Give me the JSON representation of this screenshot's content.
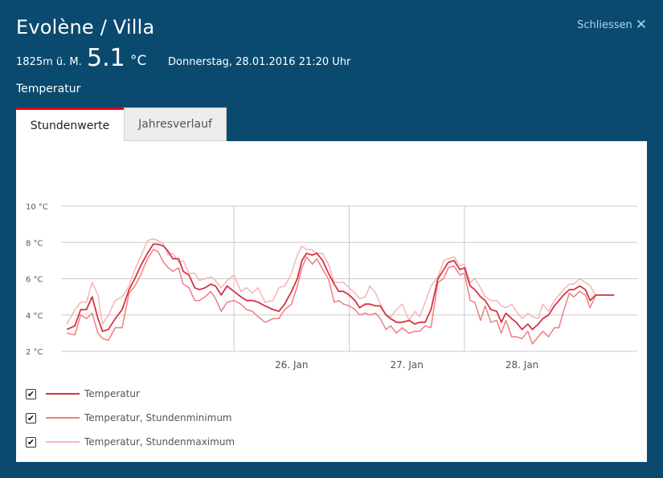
{
  "header": {
    "title": "Evolène / Villa",
    "close_label": "Schliessen",
    "altitude": "1825m ü. M.",
    "temperature": "5.1",
    "unit": "°C",
    "datetime": "Donnerstag, 28.01.2016 21:20 Uhr",
    "parameter": "Temperatur"
  },
  "tabs": [
    {
      "label": "Stundenwerte",
      "active": true
    },
    {
      "label": "Jahresverlauf",
      "active": false
    }
  ],
  "colors": {
    "background": "#0b4a6f",
    "accent": "#e2001a",
    "temp": "#d8323f",
    "tmin": "#ec7f84",
    "tmax": "#f6b4b6"
  },
  "icons": {
    "close": "close-icon",
    "checkbox": "checkmark-icon"
  },
  "legend": [
    {
      "label": "Temperatur",
      "checked": true
    },
    {
      "label": "Temperatur, Stundenminimum",
      "checked": true
    },
    {
      "label": "Temperatur, Stundenmaximum",
      "checked": true
    }
  ],
  "chart_data": {
    "type": "line",
    "grid": true,
    "legend_position": "bottom-left",
    "ylim": [
      2,
      10
    ],
    "xlim": [
      -2.0,
      3.0
    ],
    "y_ticks": [
      {
        "value": 2,
        "label": "2 °C"
      },
      {
        "value": 4,
        "label": "4 °C"
      },
      {
        "value": 6,
        "label": "6 °C"
      },
      {
        "value": 8,
        "label": "8 °C"
      },
      {
        "value": 10,
        "label": "10 °C"
      }
    ],
    "x_ticks": [
      {
        "value": 0,
        "label": "26. Jan"
      },
      {
        "value": 1,
        "label": "27. Jan"
      },
      {
        "value": 2,
        "label": "28. Jan"
      }
    ],
    "x_gridlines": [
      -0.5,
      0.5,
      1.5
    ],
    "series": [
      {
        "name": "Temperatur",
        "points": [
          [
            -1.95,
            3.2
          ],
          [
            -1.88,
            3.4
          ],
          [
            -1.83,
            4.3
          ],
          [
            -1.78,
            4.3
          ],
          [
            -1.73,
            5.0
          ],
          [
            -1.68,
            3.8
          ],
          [
            -1.64,
            3.1
          ],
          [
            -1.59,
            3.2
          ],
          [
            -1.53,
            3.8
          ],
          [
            -1.47,
            4.3
          ],
          [
            -1.41,
            5.4
          ],
          [
            -1.36,
            6.0
          ],
          [
            -1.31,
            6.7
          ],
          [
            -1.25,
            7.4
          ],
          [
            -1.2,
            7.9
          ],
          [
            -1.16,
            7.9
          ],
          [
            -1.11,
            7.8
          ],
          [
            -1.07,
            7.5
          ],
          [
            -1.03,
            7.1
          ],
          [
            -0.98,
            7.1
          ],
          [
            -0.94,
            6.4
          ],
          [
            -0.89,
            6.2
          ],
          [
            -0.84,
            5.5
          ],
          [
            -0.8,
            5.4
          ],
          [
            -0.75,
            5.5
          ],
          [
            -0.7,
            5.7
          ],
          [
            -0.66,
            5.6
          ],
          [
            -0.61,
            5.1
          ],
          [
            -0.56,
            5.6
          ],
          [
            -0.5,
            5.3
          ],
          [
            -0.44,
            5.0
          ],
          [
            -0.39,
            4.8
          ],
          [
            -0.34,
            4.8
          ],
          [
            -0.29,
            4.7
          ],
          [
            -0.23,
            4.5
          ],
          [
            -0.16,
            4.3
          ],
          [
            -0.11,
            4.2
          ],
          [
            -0.06,
            4.6
          ],
          [
            0.0,
            5.3
          ],
          [
            0.05,
            6.0
          ],
          [
            0.09,
            7.0
          ],
          [
            0.13,
            7.4
          ],
          [
            0.18,
            7.3
          ],
          [
            0.22,
            7.4
          ],
          [
            0.27,
            7.0
          ],
          [
            0.32,
            6.3
          ],
          [
            0.37,
            5.7
          ],
          [
            0.41,
            5.3
          ],
          [
            0.45,
            5.3
          ],
          [
            0.5,
            5.1
          ],
          [
            0.55,
            4.8
          ],
          [
            0.59,
            4.4
          ],
          [
            0.64,
            4.6
          ],
          [
            0.68,
            4.6
          ],
          [
            0.73,
            4.5
          ],
          [
            0.77,
            4.5
          ],
          [
            0.82,
            4.0
          ],
          [
            0.86,
            3.8
          ],
          [
            0.91,
            3.6
          ],
          [
            0.96,
            3.6
          ],
          [
            1.02,
            3.7
          ],
          [
            1.07,
            3.5
          ],
          [
            1.11,
            3.6
          ],
          [
            1.16,
            3.6
          ],
          [
            1.21,
            4.3
          ],
          [
            1.27,
            6.0
          ],
          [
            1.32,
            6.5
          ],
          [
            1.36,
            6.9
          ],
          [
            1.41,
            7.0
          ],
          [
            1.46,
            6.5
          ],
          [
            1.5,
            6.6
          ],
          [
            1.55,
            5.6
          ],
          [
            1.59,
            5.4
          ],
          [
            1.64,
            5.0
          ],
          [
            1.68,
            4.8
          ],
          [
            1.73,
            4.3
          ],
          [
            1.78,
            4.2
          ],
          [
            1.82,
            3.6
          ],
          [
            1.86,
            4.1
          ],
          [
            1.91,
            3.8
          ],
          [
            1.95,
            3.6
          ],
          [
            2.0,
            3.2
          ],
          [
            2.05,
            3.5
          ],
          [
            2.09,
            3.2
          ],
          [
            2.14,
            3.5
          ],
          [
            2.18,
            3.8
          ],
          [
            2.23,
            4.0
          ],
          [
            2.28,
            4.5
          ],
          [
            2.32,
            4.8
          ],
          [
            2.36,
            5.1
          ],
          [
            2.41,
            5.4
          ],
          [
            2.45,
            5.4
          ],
          [
            2.5,
            5.6
          ],
          [
            2.55,
            5.4
          ],
          [
            2.59,
            4.8
          ],
          [
            2.64,
            5.1
          ],
          [
            2.7,
            5.1
          ],
          [
            2.8,
            5.1
          ]
        ]
      },
      {
        "name": "Temperatur, Stundenminimum",
        "points": [
          [
            -1.95,
            3.0
          ],
          [
            -1.88,
            2.9
          ],
          [
            -1.83,
            4.0
          ],
          [
            -1.78,
            3.8
          ],
          [
            -1.73,
            4.1
          ],
          [
            -1.68,
            3.0
          ],
          [
            -1.64,
            2.7
          ],
          [
            -1.59,
            2.6
          ],
          [
            -1.53,
            3.3
          ],
          [
            -1.47,
            3.3
          ],
          [
            -1.41,
            5.2
          ],
          [
            -1.36,
            5.6
          ],
          [
            -1.31,
            6.2
          ],
          [
            -1.25,
            7.1
          ],
          [
            -1.2,
            7.6
          ],
          [
            -1.16,
            7.5
          ],
          [
            -1.11,
            6.9
          ],
          [
            -1.07,
            6.6
          ],
          [
            -1.03,
            6.4
          ],
          [
            -0.98,
            6.6
          ],
          [
            -0.94,
            5.7
          ],
          [
            -0.89,
            5.5
          ],
          [
            -0.84,
            4.8
          ],
          [
            -0.8,
            4.8
          ],
          [
            -0.75,
            5.0
          ],
          [
            -0.7,
            5.3
          ],
          [
            -0.66,
            4.9
          ],
          [
            -0.61,
            4.2
          ],
          [
            -0.56,
            4.7
          ],
          [
            -0.5,
            4.8
          ],
          [
            -0.44,
            4.6
          ],
          [
            -0.39,
            4.3
          ],
          [
            -0.34,
            4.2
          ],
          [
            -0.29,
            3.9
          ],
          [
            -0.23,
            3.6
          ],
          [
            -0.16,
            3.8
          ],
          [
            -0.11,
            3.8
          ],
          [
            -0.06,
            4.3
          ],
          [
            0.0,
            4.6
          ],
          [
            0.05,
            5.6
          ],
          [
            0.09,
            6.6
          ],
          [
            0.13,
            7.2
          ],
          [
            0.18,
            6.8
          ],
          [
            0.22,
            7.1
          ],
          [
            0.27,
            6.5
          ],
          [
            0.32,
            6.0
          ],
          [
            0.37,
            4.7
          ],
          [
            0.41,
            4.8
          ],
          [
            0.45,
            4.6
          ],
          [
            0.5,
            4.5
          ],
          [
            0.55,
            4.3
          ],
          [
            0.59,
            4.0
          ],
          [
            0.64,
            4.1
          ],
          [
            0.68,
            4.0
          ],
          [
            0.73,
            4.1
          ],
          [
            0.77,
            3.8
          ],
          [
            0.82,
            3.2
          ],
          [
            0.86,
            3.4
          ],
          [
            0.91,
            3.0
          ],
          [
            0.96,
            3.3
          ],
          [
            1.02,
            3.0
          ],
          [
            1.07,
            3.1
          ],
          [
            1.11,
            3.1
          ],
          [
            1.16,
            3.4
          ],
          [
            1.21,
            3.3
          ],
          [
            1.27,
            5.8
          ],
          [
            1.32,
            6.0
          ],
          [
            1.36,
            6.6
          ],
          [
            1.41,
            6.7
          ],
          [
            1.46,
            6.2
          ],
          [
            1.5,
            6.3
          ],
          [
            1.55,
            4.8
          ],
          [
            1.59,
            4.7
          ],
          [
            1.64,
            3.7
          ],
          [
            1.68,
            4.5
          ],
          [
            1.73,
            3.6
          ],
          [
            1.78,
            3.7
          ],
          [
            1.82,
            3.0
          ],
          [
            1.86,
            3.7
          ],
          [
            1.91,
            2.8
          ],
          [
            1.95,
            2.8
          ],
          [
            2.0,
            2.7
          ],
          [
            2.05,
            3.1
          ],
          [
            2.09,
            2.4
          ],
          [
            2.14,
            2.8
          ],
          [
            2.18,
            3.1
          ],
          [
            2.23,
            2.8
          ],
          [
            2.28,
            3.3
          ],
          [
            2.32,
            3.3
          ],
          [
            2.36,
            4.2
          ],
          [
            2.41,
            5.2
          ],
          [
            2.45,
            5.0
          ],
          [
            2.5,
            5.3
          ],
          [
            2.55,
            5.1
          ],
          [
            2.59,
            4.4
          ],
          [
            2.64,
            5.1
          ],
          [
            2.7,
            5.1
          ],
          [
            2.8,
            5.1
          ]
        ]
      },
      {
        "name": "Temperatur, Stundenmaximum",
        "points": [
          [
            -1.95,
            3.5
          ],
          [
            -1.88,
            4.3
          ],
          [
            -1.83,
            4.7
          ],
          [
            -1.78,
            4.7
          ],
          [
            -1.73,
            5.8
          ],
          [
            -1.68,
            5.1
          ],
          [
            -1.64,
            3.5
          ],
          [
            -1.59,
            4.0
          ],
          [
            -1.53,
            4.8
          ],
          [
            -1.47,
            5.0
          ],
          [
            -1.41,
            5.6
          ],
          [
            -1.36,
            6.5
          ],
          [
            -1.31,
            7.2
          ],
          [
            -1.25,
            8.1
          ],
          [
            -1.2,
            8.2
          ],
          [
            -1.16,
            8.1
          ],
          [
            -1.11,
            7.9
          ],
          [
            -1.07,
            7.3
          ],
          [
            -1.03,
            7.4
          ],
          [
            -0.98,
            6.9
          ],
          [
            -0.94,
            7.0
          ],
          [
            -0.89,
            6.3
          ],
          [
            -0.84,
            6.3
          ],
          [
            -0.8,
            5.9
          ],
          [
            -0.75,
            6.0
          ],
          [
            -0.7,
            6.1
          ],
          [
            -0.66,
            5.9
          ],
          [
            -0.61,
            5.5
          ],
          [
            -0.56,
            5.9
          ],
          [
            -0.5,
            6.2
          ],
          [
            -0.44,
            5.3
          ],
          [
            -0.39,
            5.5
          ],
          [
            -0.34,
            5.2
          ],
          [
            -0.29,
            5.5
          ],
          [
            -0.23,
            4.7
          ],
          [
            -0.16,
            4.8
          ],
          [
            -0.11,
            5.5
          ],
          [
            -0.06,
            5.6
          ],
          [
            0.0,
            6.3
          ],
          [
            0.05,
            7.3
          ],
          [
            0.09,
            7.8
          ],
          [
            0.13,
            7.6
          ],
          [
            0.18,
            7.6
          ],
          [
            0.22,
            7.4
          ],
          [
            0.27,
            7.4
          ],
          [
            0.32,
            6.8
          ],
          [
            0.37,
            5.8
          ],
          [
            0.41,
            5.8
          ],
          [
            0.45,
            5.8
          ],
          [
            0.5,
            5.5
          ],
          [
            0.55,
            5.2
          ],
          [
            0.59,
            4.9
          ],
          [
            0.64,
            5.0
          ],
          [
            0.68,
            5.6
          ],
          [
            0.73,
            5.2
          ],
          [
            0.77,
            4.6
          ],
          [
            0.82,
            4.0
          ],
          [
            0.86,
            3.9
          ],
          [
            0.91,
            4.3
          ],
          [
            0.96,
            4.6
          ],
          [
            1.02,
            3.7
          ],
          [
            1.07,
            4.2
          ],
          [
            1.11,
            3.9
          ],
          [
            1.16,
            4.7
          ],
          [
            1.21,
            5.6
          ],
          [
            1.27,
            6.1
          ],
          [
            1.32,
            7.0
          ],
          [
            1.36,
            7.1
          ],
          [
            1.41,
            7.2
          ],
          [
            1.46,
            6.7
          ],
          [
            1.5,
            6.8
          ],
          [
            1.55,
            5.8
          ],
          [
            1.59,
            6.0
          ],
          [
            1.64,
            5.5
          ],
          [
            1.68,
            5.0
          ],
          [
            1.73,
            4.8
          ],
          [
            1.78,
            4.8
          ],
          [
            1.82,
            4.5
          ],
          [
            1.86,
            4.4
          ],
          [
            1.91,
            4.6
          ],
          [
            1.95,
            4.2
          ],
          [
            2.0,
            3.8
          ],
          [
            2.05,
            4.1
          ],
          [
            2.09,
            3.9
          ],
          [
            2.14,
            3.8
          ],
          [
            2.18,
            4.6
          ],
          [
            2.23,
            4.2
          ],
          [
            2.28,
            4.8
          ],
          [
            2.32,
            5.1
          ],
          [
            2.36,
            5.4
          ],
          [
            2.41,
            5.7
          ],
          [
            2.45,
            5.7
          ],
          [
            2.5,
            6.0
          ],
          [
            2.55,
            5.8
          ],
          [
            2.59,
            5.6
          ],
          [
            2.64,
            5.1
          ],
          [
            2.7,
            5.1
          ],
          [
            2.8,
            5.1
          ]
        ]
      }
    ]
  }
}
